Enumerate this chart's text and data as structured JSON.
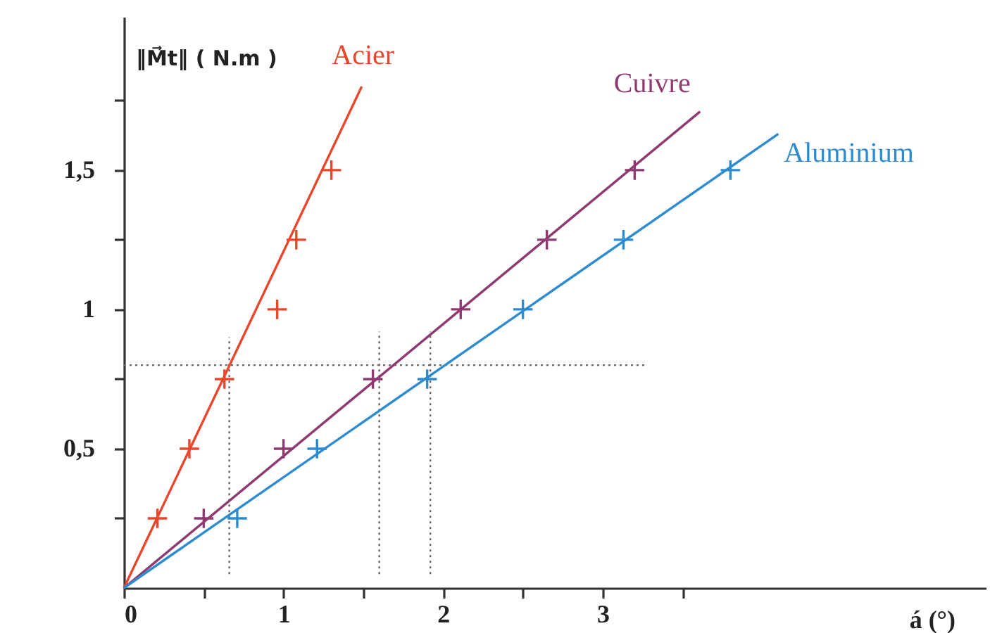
{
  "chart_data": {
    "type": "scatter",
    "xlabel": "á (°)",
    "ylabel": "‖M⃗t‖ ( N.m )",
    "xlim": [
      0,
      5.4
    ],
    "ylim": [
      0,
      2.05
    ],
    "xticks": [
      {
        "value": 0,
        "label": "0"
      },
      {
        "value": 0.5,
        "label": null
      },
      1,
      {
        "value": 1.5,
        "label": null
      },
      2,
      {
        "value": 2.5,
        "label": null
      },
      3,
      {
        "value": 3.5,
        "label": null
      }
    ],
    "yticks": [
      {
        "value": 0.25,
        "label": null
      },
      {
        "value": 0.5,
        "label": "0,5"
      },
      {
        "value": 0.75,
        "label": null
      },
      1,
      {
        "value": 1.25,
        "label": null
      },
      {
        "value": 1.5,
        "label": "1,5"
      },
      {
        "value": 1.75,
        "label": null
      }
    ],
    "grid": false,
    "legend": false,
    "series": [
      {
        "type": "line",
        "color": "#666666",
        "line_style": "dotted",
        "x": [
          0,
          3.27
        ],
        "values": [
          0.8,
          0.8
        ]
      },
      {
        "type": "line",
        "color": "#666666",
        "line_style": "dotted",
        "x": [
          0.66,
          0.66
        ],
        "values": [
          0.05,
          0.9
        ]
      },
      {
        "type": "line",
        "color": "#666666",
        "line_style": "dotted",
        "x": [
          1.6,
          1.6
        ],
        "values": [
          0.05,
          0.92
        ]
      },
      {
        "type": "line",
        "color": "#666666",
        "line_style": "dotted",
        "x": [
          1.92,
          1.92
        ],
        "values": [
          0.05,
          0.92
        ]
      },
      {
        "name": "Acier",
        "type": "line",
        "color": "#e9472c",
        "line_style": "solid",
        "x": [
          0,
          1.49
        ],
        "values": [
          0,
          1.8
        ]
      },
      {
        "name": "Cuivre",
        "type": "line",
        "color": "#8e3a70",
        "line_style": "solid",
        "x": [
          0,
          3.61
        ],
        "values": [
          0,
          1.71
        ]
      },
      {
        "name": "Aluminium",
        "type": "line",
        "color": "#2d8bcf",
        "line_style": "solid",
        "x": [
          0,
          4.1
        ],
        "values": [
          0,
          1.63
        ]
      },
      {
        "color": "#e9472c",
        "marker": "cross",
        "x": [
          0.21,
          0.41,
          0.63,
          0.96,
          1.08,
          1.3
        ],
        "values": [
          0.25,
          0.5,
          0.75,
          1,
          1.25,
          1.5
        ]
      },
      {
        "color": "#8e3a70",
        "marker": "cross",
        "x": [
          0.5,
          1.0,
          1.56,
          2.11,
          2.65,
          3.2
        ],
        "values": [
          0.25,
          0.5,
          0.75,
          1,
          1.25,
          1.5
        ]
      },
      {
        "color": "#2d8bcf",
        "marker": "cross",
        "x": [
          0.71,
          1.21,
          1.9,
          2.5,
          3.13,
          3.8
        ],
        "values": [
          0.25,
          0.5,
          0.75,
          1,
          1.25,
          1.5
        ]
      }
    ]
  }
}
